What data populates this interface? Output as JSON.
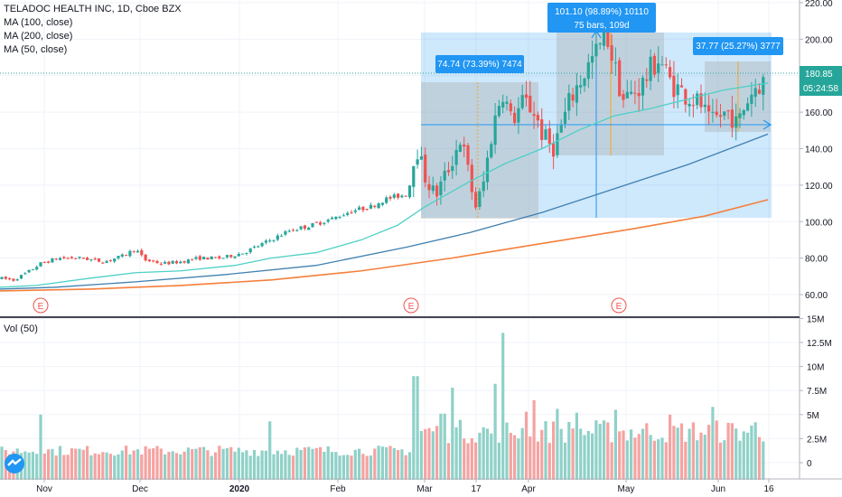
{
  "header": {
    "symbol": "TELADOC HEALTH INC, 1D, Cboe BZX",
    "indicators": [
      "MA (100, close)",
      "MA (200, close)",
      "MA (50, close)"
    ]
  },
  "volume_label": "Vol (50)",
  "price_axis": {
    "ticks": [
      "220.00",
      "200.00",
      "180.00",
      "160.00",
      "140.00",
      "120.00",
      "100.00",
      "80.00",
      "60.00"
    ],
    "current_price": "180.85",
    "countdown": "05:24:58"
  },
  "volume_axis": {
    "ticks": [
      "15M",
      "12.5M",
      "10M",
      "7.5M",
      "5M",
      "2.5M",
      "0"
    ]
  },
  "time_axis": {
    "ticks": [
      "Nov",
      "Dec",
      "2020",
      "Feb",
      "Mar",
      "17",
      "Apr",
      "May",
      "Jun",
      "16"
    ]
  },
  "earnings_marker": "E",
  "measurements": [
    {
      "label": "74.74 (73.39%) 7474"
    },
    {
      "label": "101.10 (98.89%) 10110",
      "sublabel": "75 bars, 109d"
    },
    {
      "label": "37.77 (25.27%) 3777"
    }
  ],
  "colors": {
    "up": "#26a69a",
    "down": "#ef5350",
    "ma50": "#4dd0c6",
    "ma100": "#3f7fb0",
    "ma200": "#f57f3c",
    "accent": "#2196f3",
    "last_price_bg": "#26a69a"
  },
  "chart_data": {
    "type": "candlestick",
    "series": [
      {
        "name": "MA (50, close)",
        "values": [
          [
            0,
            64
          ],
          [
            40,
            65
          ],
          [
            100,
            69
          ],
          [
            150,
            72
          ],
          [
            200,
            73
          ],
          [
            260,
            76
          ],
          [
            300,
            80
          ],
          [
            350,
            83
          ],
          [
            400,
            90
          ],
          [
            440,
            98
          ],
          [
            470,
            108
          ],
          [
            520,
            122
          ],
          [
            560,
            132
          ],
          [
            600,
            140
          ],
          [
            640,
            150
          ],
          [
            680,
            158
          ],
          [
            720,
            162
          ],
          [
            760,
            167
          ],
          [
            800,
            172
          ],
          [
            850,
            176
          ]
        ]
      },
      {
        "name": "MA (100, close)",
        "values": [
          [
            0,
            63
          ],
          [
            60,
            64
          ],
          [
            150,
            67
          ],
          [
            250,
            71
          ],
          [
            350,
            76
          ],
          [
            450,
            86
          ],
          [
            520,
            94
          ],
          [
            600,
            105
          ],
          [
            680,
            118
          ],
          [
            760,
            131
          ],
          [
            850,
            148
          ]
        ]
      },
      {
        "name": "MA (200, close)",
        "values": [
          [
            0,
            62
          ],
          [
            100,
            63
          ],
          [
            200,
            65
          ],
          [
            300,
            68
          ],
          [
            400,
            73
          ],
          [
            500,
            80
          ],
          [
            600,
            88
          ],
          [
            700,
            96
          ],
          [
            780,
            103
          ],
          [
            850,
            112
          ]
        ]
      }
    ],
    "ylim": [
      50,
      225
    ],
    "volume_ylim": [
      0,
      15
    ]
  }
}
